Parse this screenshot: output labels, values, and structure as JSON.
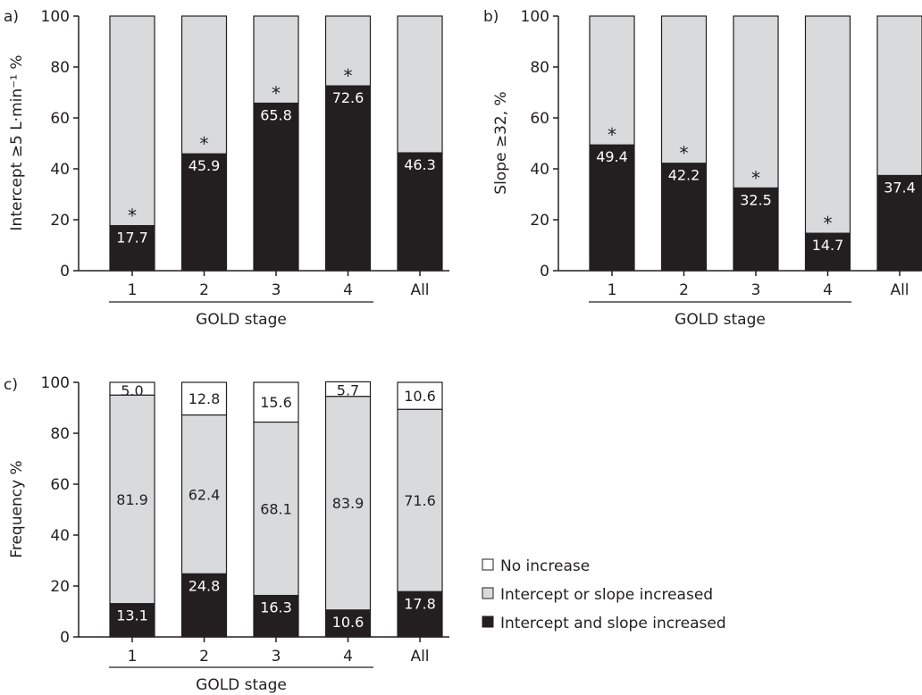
{
  "colors": {
    "dark": "#231f20",
    "light": "#d9dadb",
    "white": "#ffffff",
    "stroke": "#231f20"
  },
  "chart_data": [
    {
      "panel": "a)",
      "type": "bar",
      "stacked": true,
      "ylabel": "Intercept ≥5 L·min⁻¹ %",
      "xlabel": "GOLD stage",
      "ylim": [
        0,
        100
      ],
      "yticks": [
        "0",
        "20",
        "40",
        "60",
        "80",
        "100"
      ],
      "categories": [
        "1",
        "2",
        "3",
        "4",
        "All"
      ],
      "series": [
        {
          "values": [
            17.7,
            45.9,
            65.8,
            72.6,
            46.3
          ],
          "labels": [
            "17.7",
            "45.9",
            "65.8",
            "72.6",
            "46.3"
          ]
        },
        {
          "values": [
            82.3,
            54.1,
            34.2,
            27.4,
            53.7
          ]
        }
      ],
      "significant": [
        true,
        true,
        true,
        true,
        false
      ],
      "significance_marker": "*",
      "grid": false
    },
    {
      "panel": "b)",
      "type": "bar",
      "stacked": true,
      "ylabel": "Slope ≥32, %",
      "xlabel": "GOLD stage",
      "ylim": [
        0,
        100
      ],
      "yticks": [
        "0",
        "20",
        "40",
        "60",
        "80",
        "100"
      ],
      "categories": [
        "1",
        "2",
        "3",
        "4",
        "All"
      ],
      "series": [
        {
          "values": [
            49.4,
            42.2,
            32.5,
            14.7,
            37.4
          ],
          "labels": [
            "49.4",
            "42.2",
            "32.5",
            "14.7",
            "37.4"
          ]
        },
        {
          "values": [
            50.6,
            57.8,
            67.5,
            85.3,
            62.6
          ]
        }
      ],
      "significant": [
        true,
        true,
        true,
        true,
        false
      ],
      "significance_marker": "*",
      "grid": false
    },
    {
      "panel": "c)",
      "type": "bar",
      "stacked": true,
      "ylabel": "Frequency %",
      "xlabel": "GOLD stage",
      "ylim": [
        0,
        100
      ],
      "yticks": [
        "0",
        "20",
        "40",
        "60",
        "80",
        "100"
      ],
      "categories": [
        "1",
        "2",
        "3",
        "4",
        "All"
      ],
      "series": [
        {
          "name": "Intercept and slope increased",
          "values": [
            13.1,
            24.8,
            16.3,
            10.6,
            17.8
          ],
          "labels": [
            "13.1",
            "24.8",
            "16.3",
            "10.6",
            "17.8"
          ]
        },
        {
          "name": "Intercept or slope increased",
          "values": [
            81.9,
            62.4,
            68.1,
            83.9,
            71.6
          ],
          "labels": [
            "81.9",
            "62.4",
            "68.1",
            "83.9",
            "71.6"
          ]
        },
        {
          "name": "No increase",
          "values": [
            5.0,
            12.8,
            15.6,
            5.7,
            10.6
          ],
          "labels": [
            "5.0",
            "12.8",
            "15.6",
            "5.7",
            "10.6"
          ]
        }
      ],
      "legend": {
        "placement": "right",
        "entries": [
          {
            "label": "No increase",
            "color": "#ffffff"
          },
          {
            "label": "Intercept or slope increased",
            "color": "#d9dadb"
          },
          {
            "label": "Intercept and slope increased",
            "color": "#231f20"
          }
        ]
      },
      "grid": false
    }
  ]
}
